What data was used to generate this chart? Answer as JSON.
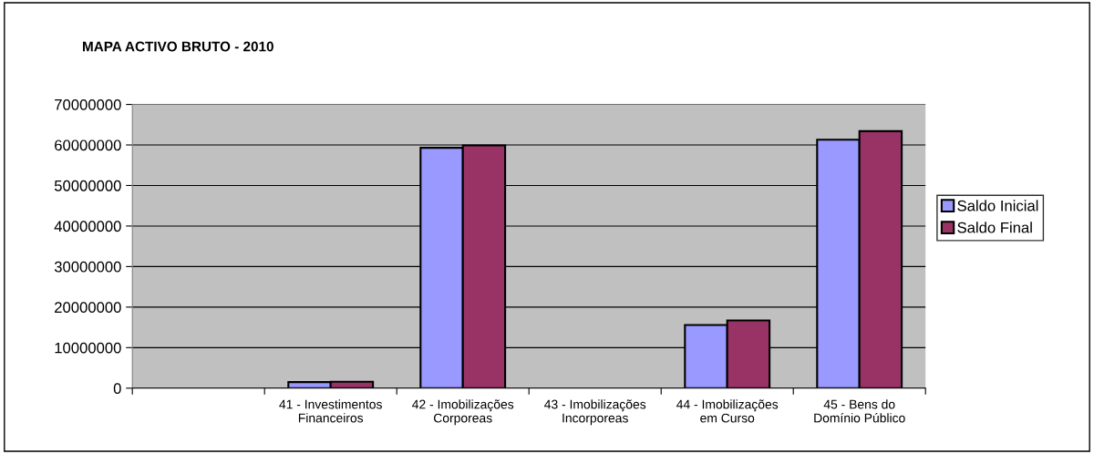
{
  "chart_data": {
    "type": "bar",
    "title": "MAPA ACTIVO BRUTO - 2010",
    "categories": [
      null,
      "41 - Investimentos\nFinanceiros",
      "42 - Imobilizações\nCorporeas",
      "43 - Imobilizações\nIncorporeas",
      "44 - Imobilizações\nem Curso",
      "45 - Bens do\nDomínio Público"
    ],
    "series": [
      {
        "name": "Saldo Inicial",
        "color": "#9999ff",
        "values": [
          null,
          1500000,
          59300000,
          null,
          15600000,
          61300000
        ]
      },
      {
        "name": "Saldo Final",
        "color": "#993366",
        "values": [
          null,
          1600000,
          59900000,
          null,
          16700000,
          63400000
        ]
      }
    ],
    "ylim": [
      0,
      70000000
    ],
    "yticks": [
      0,
      10000000,
      20000000,
      30000000,
      40000000,
      50000000,
      60000000,
      70000000
    ],
    "grid": "y",
    "legend": "right"
  }
}
